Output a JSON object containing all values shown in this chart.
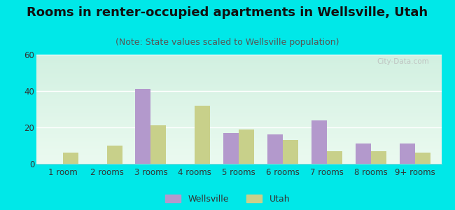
{
  "title": "Rooms in renter-occupied apartments in Wellsville, Utah",
  "subtitle": "(Note: State values scaled to Wellsville population)",
  "categories": [
    "1 room",
    "2 rooms",
    "3 rooms",
    "4 rooms",
    "5 rooms",
    "6 rooms",
    "7 rooms",
    "8 rooms",
    "9+ rooms"
  ],
  "wellsville": [
    0,
    0,
    41,
    0,
    17,
    16,
    24,
    11,
    11
  ],
  "utah": [
    6,
    10,
    21,
    32,
    19,
    13,
    7,
    7,
    6
  ],
  "wellsville_color": "#b399cc",
  "utah_color": "#c8d08a",
  "background_outer": "#00e8e8",
  "background_plot_topleft": "#d0ede0",
  "background_plot_topright": "#e8f4f8",
  "background_plot_bottom": "#f0f8f0",
  "ylim": [
    0,
    60
  ],
  "yticks": [
    0,
    20,
    40,
    60
  ],
  "bar_width": 0.35,
  "title_fontsize": 13,
  "subtitle_fontsize": 9,
  "tick_fontsize": 8.5,
  "legend_fontsize": 9,
  "watermark": "City-Data.com"
}
